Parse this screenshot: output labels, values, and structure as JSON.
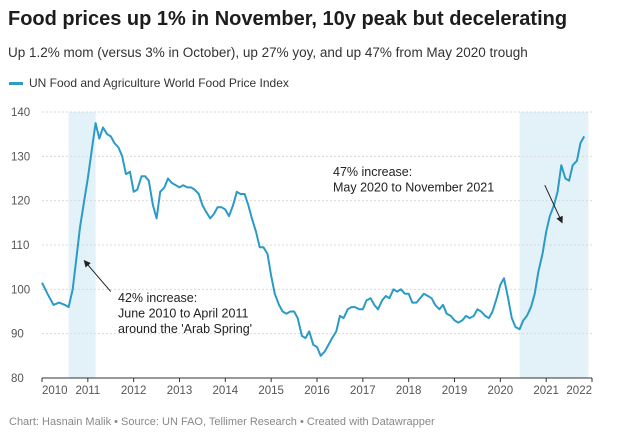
{
  "header": {
    "title": "Food prices up 1% in November, 10y peak but decelerating",
    "subtitle": "Up 1.2% mom (versus 3% in October), up 27% yoy, and up 47% from May 2020 trough"
  },
  "footer": {
    "text": "Chart: Hasnain Malik • Source: UN FAO, Tellimer Research • Created with Datawrapper"
  },
  "colors": {
    "line": "#2b9bc6",
    "shade": "#e3f1f9",
    "grid": "#d9d9d9",
    "arrow": "#222222"
  },
  "chart_data": {
    "type": "line",
    "series": [
      {
        "name": "UN Food and Agriculture World Food Price Index",
        "points": [
          [
            2010.0,
            101.5
          ],
          [
            2010.12,
            99.0
          ],
          [
            2010.25,
            96.5
          ],
          [
            2010.37,
            97.0
          ],
          [
            2010.5,
            96.5
          ],
          [
            2010.58,
            96.0
          ],
          [
            2010.67,
            100.0
          ],
          [
            2010.75,
            107.0
          ],
          [
            2010.83,
            114.0
          ],
          [
            2010.92,
            120.0
          ],
          [
            2011.0,
            125.0
          ],
          [
            2011.08,
            131.0
          ],
          [
            2011.17,
            137.5
          ],
          [
            2011.25,
            134.0
          ],
          [
            2011.33,
            136.5
          ],
          [
            2011.42,
            135.0
          ],
          [
            2011.5,
            134.5
          ],
          [
            2011.58,
            133.0
          ],
          [
            2011.67,
            132.0
          ],
          [
            2011.75,
            130.0
          ],
          [
            2011.83,
            126.0
          ],
          [
            2011.92,
            126.5
          ],
          [
            2012.0,
            122.0
          ],
          [
            2012.08,
            122.5
          ],
          [
            2012.17,
            125.5
          ],
          [
            2012.25,
            125.5
          ],
          [
            2012.33,
            124.5
          ],
          [
            2012.42,
            119.0
          ],
          [
            2012.5,
            116.0
          ],
          [
            2012.58,
            122.0
          ],
          [
            2012.67,
            123.0
          ],
          [
            2012.75,
            125.0
          ],
          [
            2012.83,
            124.0
          ],
          [
            2012.92,
            123.5
          ],
          [
            2013.0,
            123.0
          ],
          [
            2013.08,
            123.5
          ],
          [
            2013.17,
            123.0
          ],
          [
            2013.25,
            123.0
          ],
          [
            2013.33,
            122.5
          ],
          [
            2013.42,
            121.5
          ],
          [
            2013.5,
            119.0
          ],
          [
            2013.58,
            117.5
          ],
          [
            2013.67,
            116.0
          ],
          [
            2013.75,
            117.0
          ],
          [
            2013.83,
            118.5
          ],
          [
            2013.92,
            118.5
          ],
          [
            2014.0,
            118.0
          ],
          [
            2014.08,
            116.5
          ],
          [
            2014.17,
            119.0
          ],
          [
            2014.25,
            122.0
          ],
          [
            2014.33,
            121.5
          ],
          [
            2014.42,
            121.5
          ],
          [
            2014.5,
            119.0
          ],
          [
            2014.58,
            116.0
          ],
          [
            2014.67,
            113.0
          ],
          [
            2014.75,
            109.5
          ],
          [
            2014.83,
            109.5
          ],
          [
            2014.92,
            108.0
          ],
          [
            2015.0,
            103.0
          ],
          [
            2015.08,
            99.0
          ],
          [
            2015.17,
            96.5
          ],
          [
            2015.25,
            95.0
          ],
          [
            2015.33,
            94.5
          ],
          [
            2015.42,
            95.0
          ],
          [
            2015.5,
            95.0
          ],
          [
            2015.58,
            93.5
          ],
          [
            2015.67,
            89.5
          ],
          [
            2015.75,
            89.0
          ],
          [
            2015.83,
            90.5
          ],
          [
            2015.92,
            87.5
          ],
          [
            2016.0,
            87.0
          ],
          [
            2016.08,
            85.0
          ],
          [
            2016.17,
            86.0
          ],
          [
            2016.25,
            87.5
          ],
          [
            2016.33,
            89.0
          ],
          [
            2016.42,
            90.5
          ],
          [
            2016.5,
            94.0
          ],
          [
            2016.58,
            93.5
          ],
          [
            2016.67,
            95.5
          ],
          [
            2016.75,
            96.0
          ],
          [
            2016.83,
            96.0
          ],
          [
            2016.92,
            95.5
          ],
          [
            2017.0,
            95.5
          ],
          [
            2017.08,
            97.5
          ],
          [
            2017.17,
            98.0
          ],
          [
            2017.25,
            96.5
          ],
          [
            2017.33,
            95.5
          ],
          [
            2017.42,
            97.5
          ],
          [
            2017.5,
            98.5
          ],
          [
            2017.58,
            98.0
          ],
          [
            2017.67,
            100.0
          ],
          [
            2017.75,
            99.5
          ],
          [
            2017.83,
            100.0
          ],
          [
            2017.92,
            99.0
          ],
          [
            2018.0,
            99.0
          ],
          [
            2018.08,
            97.0
          ],
          [
            2018.17,
            97.0
          ],
          [
            2018.25,
            98.0
          ],
          [
            2018.33,
            99.0
          ],
          [
            2018.42,
            98.5
          ],
          [
            2018.5,
            98.0
          ],
          [
            2018.58,
            96.5
          ],
          [
            2018.67,
            95.5
          ],
          [
            2018.75,
            96.5
          ],
          [
            2018.83,
            94.5
          ],
          [
            2018.92,
            94.0
          ],
          [
            2019.0,
            93.0
          ],
          [
            2019.08,
            92.5
          ],
          [
            2019.17,
            93.0
          ],
          [
            2019.25,
            94.0
          ],
          [
            2019.33,
            93.5
          ],
          [
            2019.42,
            94.0
          ],
          [
            2019.5,
            95.5
          ],
          [
            2019.58,
            95.0
          ],
          [
            2019.67,
            94.0
          ],
          [
            2019.75,
            93.5
          ],
          [
            2019.83,
            95.0
          ],
          [
            2019.92,
            98.0
          ],
          [
            2020.0,
            101.0
          ],
          [
            2020.08,
            102.5
          ],
          [
            2020.17,
            98.0
          ],
          [
            2020.25,
            93.5
          ],
          [
            2020.33,
            91.5
          ],
          [
            2020.42,
            91.0
          ],
          [
            2020.5,
            93.0
          ],
          [
            2020.58,
            94.0
          ],
          [
            2020.67,
            96.0
          ],
          [
            2020.75,
            99.0
          ],
          [
            2020.83,
            104.0
          ],
          [
            2020.92,
            108.0
          ],
          [
            2021.0,
            113.0
          ],
          [
            2021.08,
            116.5
          ],
          [
            2021.17,
            119.0
          ],
          [
            2021.25,
            122.0
          ],
          [
            2021.33,
            128.0
          ],
          [
            2021.42,
            125.0
          ],
          [
            2021.5,
            124.5
          ],
          [
            2021.58,
            128.0
          ],
          [
            2021.67,
            129.0
          ],
          [
            2021.75,
            133.0
          ],
          [
            2021.83,
            134.5
          ]
        ]
      }
    ],
    "x_ticks": [
      "2010",
      "2011",
      "2012",
      "2013",
      "2014",
      "2015",
      "2016",
      "2017",
      "2018",
      "2019",
      "2020",
      "2021",
      "2022"
    ],
    "y_ticks": [
      "80",
      "90",
      "100",
      "110",
      "120",
      "130",
      "140"
    ],
    "xlim": [
      2010.0,
      2022.0
    ],
    "ylim": [
      80,
      140
    ],
    "grid": true,
    "legend": "top-left",
    "shaded_periods": [
      [
        2010.58,
        2011.17
      ],
      [
        2020.42,
        2021.92
      ]
    ],
    "annotations": [
      {
        "lines": [
          "47% increase:",
          "May 2020 to November 2021"
        ],
        "arrow_from": [
          2020.97,
          123.5
        ],
        "arrow_to": [
          2021.35,
          115.0
        ]
      },
      {
        "lines": [
          "42% increase:",
          "June 2010 to April 2011",
          "around the 'Arab Spring'"
        ],
        "arrow_from": [
          2011.5,
          99.5
        ],
        "arrow_to": [
          2010.92,
          106.5
        ]
      }
    ]
  }
}
